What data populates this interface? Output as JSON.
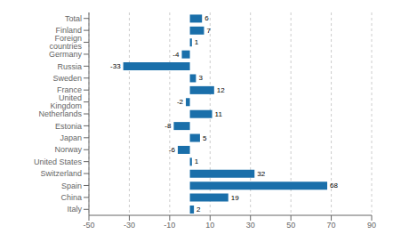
{
  "chart_data": {
    "type": "bar",
    "orientation": "horizontal",
    "categories": [
      "Total",
      "Finland",
      "Foreign countries",
      "Germany",
      "Russia",
      "Sweden",
      "France",
      "United Kingdom",
      "Netherlands",
      "Estonia",
      "Japan",
      "Norway",
      "United States",
      "Switzerland",
      "Spain",
      "China",
      "Italy"
    ],
    "values": [
      6,
      7,
      1,
      -4,
      -33,
      3,
      12,
      -2,
      11,
      -8,
      5,
      -6,
      1,
      32,
      68,
      19,
      2
    ],
    "color": "#1a6faa",
    "xlim": [
      -50,
      90
    ],
    "xticks": [
      -50,
      -30,
      -10,
      10,
      30,
      50,
      70,
      90
    ],
    "grid": true,
    "data_labels": true
  }
}
